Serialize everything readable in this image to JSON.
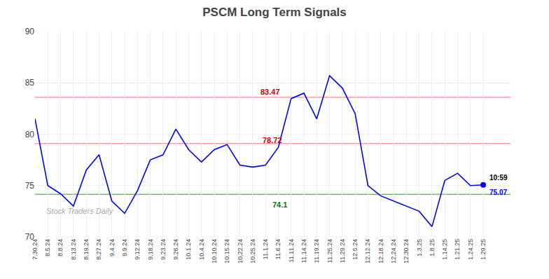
{
  "chart_data": {
    "type": "line",
    "title": "PSCM Long Term Signals",
    "categories": [
      "7.30.24",
      "8.5.24",
      "8.8.24",
      "8.13.24",
      "8.19.24",
      "8.27.24",
      "9.4.24",
      "9.9.24",
      "9.12.24",
      "9.18.24",
      "9.23.24",
      "9.26.24",
      "10.1.24",
      "10.4.24",
      "10.10.24",
      "10.15.24",
      "10.22.24",
      "10.25.24",
      "11.1.24",
      "11.6.24",
      "11.11.24",
      "11.14.24",
      "11.19.24",
      "11.25.24",
      "11.29.24",
      "12.5.24",
      "12.12.24",
      "12.18.24",
      "12.24.24",
      "12.30.24",
      "1.3.25",
      "1.8.25",
      "1.14.25",
      "1.21.25",
      "1.24.25",
      "1.29.25"
    ],
    "values": [
      81.5,
      75.0,
      74.2,
      73.0,
      76.5,
      78.0,
      73.5,
      72.3,
      74.5,
      77.5,
      78.0,
      80.5,
      78.5,
      77.3,
      78.5,
      79.0,
      77.0,
      76.8,
      77.0,
      78.72,
      83.47,
      84.0,
      81.5,
      85.7,
      84.5,
      82.0,
      75.0,
      74.0,
      73.5,
      73.0,
      72.5,
      71.0,
      75.5,
      76.2,
      75.0,
      75.07
    ],
    "color": "blue",
    "ylim": [
      70,
      90
    ],
    "yticks": [
      70,
      75,
      80,
      85,
      90
    ],
    "grid": true,
    "hlines": [
      {
        "value": 83.6,
        "color": "#f5a0a0"
      },
      {
        "value": 79.1,
        "color": "#f5a0a0"
      },
      {
        "value": 74.15,
        "color": "#70c070"
      }
    ],
    "annotations": [
      {
        "text": "83.47",
        "category": "11.6.24",
        "y": 83.47,
        "color": "#cc0000"
      },
      {
        "text": "78.72",
        "category": "11.1.24",
        "y": 78.72,
        "color": "#cc0000"
      },
      {
        "text": "74.1",
        "category": "11.6.24",
        "y": 74.1,
        "color": "green"
      }
    ],
    "last_point": {
      "category": "1.29.25",
      "value": 75.07,
      "color": "blue",
      "labels": [
        {
          "text": "10:59",
          "color": "black"
        },
        {
          "text": "75.07",
          "color": "blue"
        }
      ]
    },
    "watermark": "Stock Traders Daily"
  }
}
